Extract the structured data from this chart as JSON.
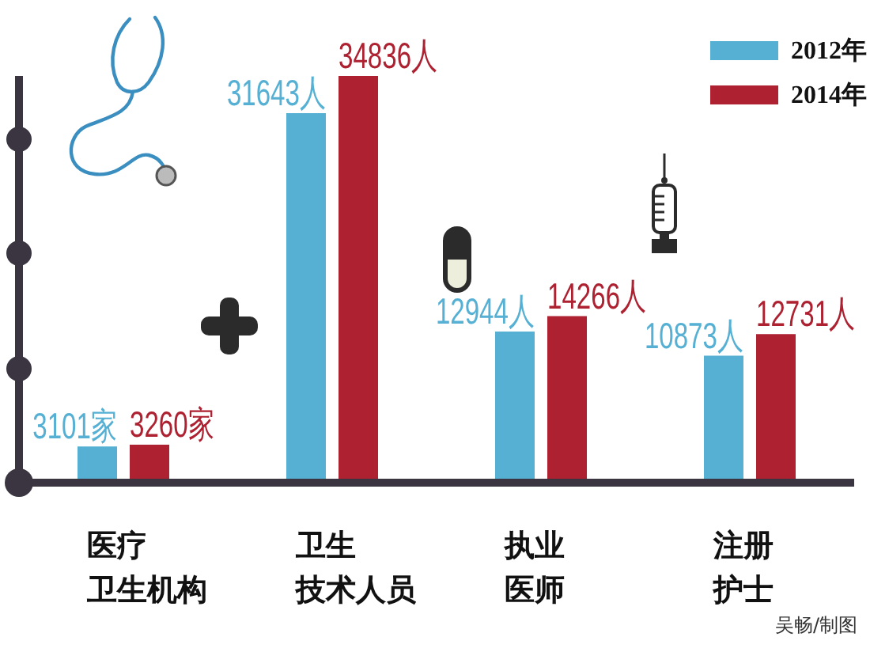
{
  "chart_data": {
    "type": "bar",
    "categories": [
      "医疗卫生机构",
      "卫生技术人员",
      "执业医师",
      "注册护士"
    ],
    "series": [
      {
        "name": "2012年",
        "color": "#55b0d4",
        "values": [
          3101,
          31643,
          12944,
          10873
        ],
        "value_labels": [
          "3101家",
          "31643人",
          "12944人",
          "10873人"
        ]
      },
      {
        "name": "2014年",
        "color": "#ad2131",
        "values": [
          3260,
          34836,
          14266,
          12731
        ],
        "value_labels": [
          "3260家",
          "34836人",
          "14266人",
          "12731人"
        ]
      }
    ],
    "legend": "top right",
    "tick_labels": "x",
    "annotations": [
      "吴畅/制图"
    ]
  }
}
